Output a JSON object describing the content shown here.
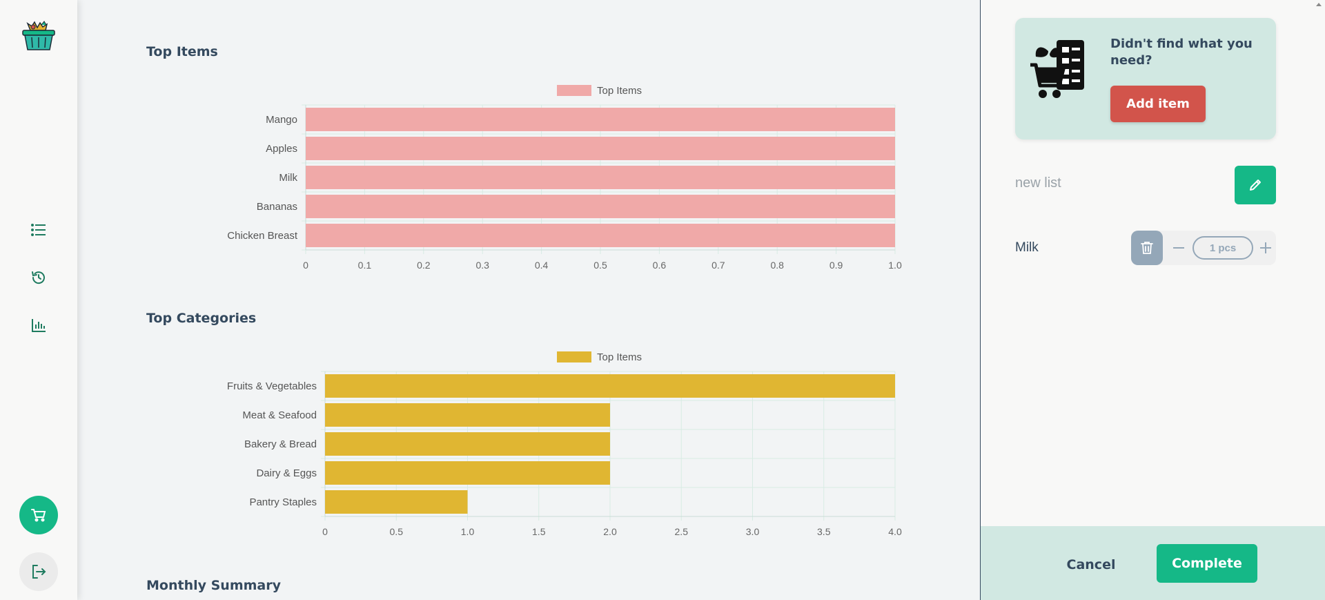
{
  "colors": {
    "accent_green": "#15b887",
    "add_red": "#d2544b",
    "items_bar": "#f0a9a8",
    "categories_bar": "#e0b632",
    "panel_bg": "#d1e8e2",
    "text_dark": "#34495e"
  },
  "sidebar": {
    "logo_icon": "shopping-basket-icon",
    "nav": [
      {
        "icon": "list-icon"
      },
      {
        "icon": "history-icon"
      },
      {
        "icon": "bar-chart-icon"
      }
    ],
    "cart_icon": "cart-icon",
    "logout_icon": "logout-icon"
  },
  "main": {
    "sections": {
      "top_items": "Top Items",
      "top_categories": "Top Categories",
      "monthly_summary": "Monthly Summary"
    }
  },
  "chart_data": [
    {
      "type": "bar",
      "orientation": "horizontal",
      "title": "Top Items",
      "legend": [
        "Top Items"
      ],
      "categories": [
        "Mango",
        "Apples",
        "Milk",
        "Bananas",
        "Chicken Breast"
      ],
      "values": [
        1,
        1,
        1,
        1,
        1
      ],
      "xlim": [
        0,
        1.0
      ],
      "xticks": [
        "0",
        "0.1",
        "0.2",
        "0.3",
        "0.4",
        "0.5",
        "0.6",
        "0.7",
        "0.8",
        "0.9",
        "1.0"
      ],
      "grid": true,
      "legend_position": "top-center"
    },
    {
      "type": "bar",
      "orientation": "horizontal",
      "title": "Top Categories",
      "legend": [
        "Top Items"
      ],
      "categories": [
        "Fruits & Vegetables",
        "Meat & Seafood",
        "Bakery & Bread",
        "Dairy & Eggs",
        "Pantry Staples"
      ],
      "values": [
        4,
        2,
        2,
        2,
        1
      ],
      "xlim": [
        0,
        4.0
      ],
      "xticks": [
        "0",
        "0.5",
        "1.0",
        "1.5",
        "2.0",
        "2.5",
        "3.0",
        "3.5",
        "4.0"
      ],
      "grid": true,
      "legend_position": "top-center"
    }
  ],
  "panel": {
    "card": {
      "text": "Didn't find what you need?",
      "button": "Add item",
      "illustration_icon": "grocery-cart-checklist-icon"
    },
    "list": {
      "name_placeholder": "new list",
      "edit_icon": "pencil-icon"
    },
    "items": [
      {
        "name": "Milk",
        "quantity": "1 pcs"
      }
    ],
    "footer": {
      "cancel": "Cancel",
      "complete": "Complete"
    }
  }
}
